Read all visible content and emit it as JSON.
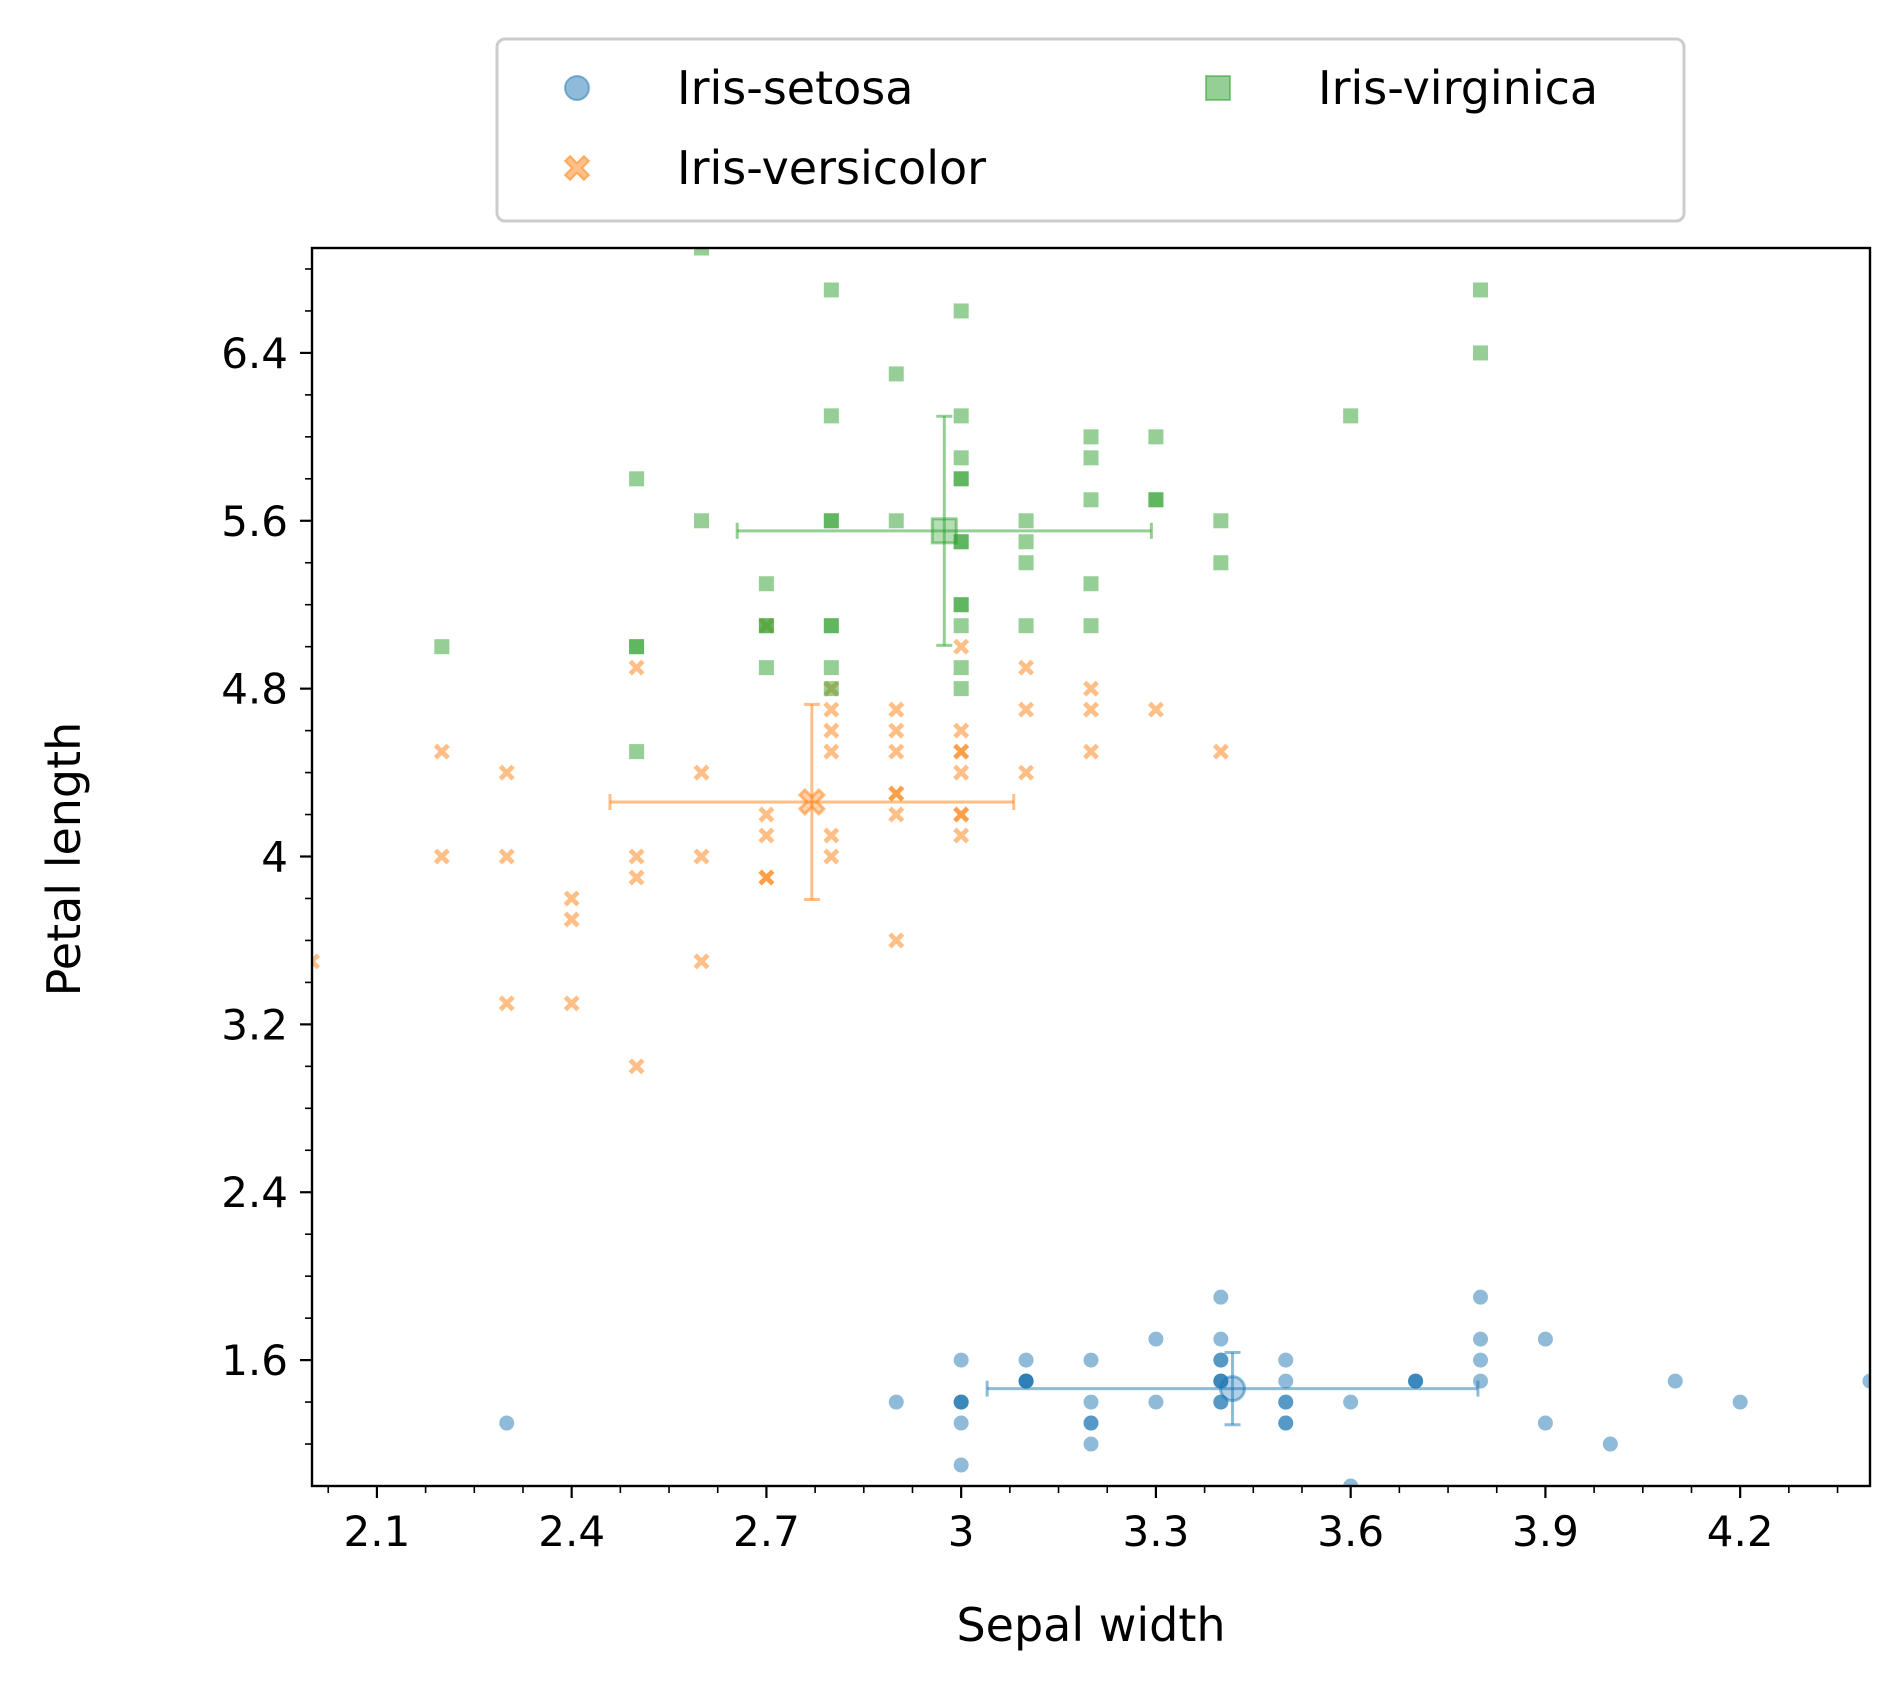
{
  "chart_data": {
    "type": "scatter",
    "x_label": "Sepal width",
    "y_label": "Petal length",
    "xlim": [
      2.0,
      4.4
    ],
    "ylim": [
      1.0,
      6.9
    ],
    "xticks": [
      2.1,
      2.4,
      2.7,
      3.0,
      3.3,
      3.6,
      3.9,
      4.2
    ],
    "yticks": [
      1.6,
      2.4,
      3.2,
      4.0,
      4.8,
      5.6,
      6.4
    ],
    "xminorticks": [
      2.025,
      2.175,
      2.25,
      2.325,
      2.475,
      2.55,
      2.625,
      2.775,
      2.85,
      2.925,
      3.075,
      3.15,
      3.225,
      3.375,
      3.45,
      3.525,
      3.675,
      3.75,
      3.825,
      3.975,
      4.05,
      4.125,
      4.275,
      4.35
    ],
    "yminorticks": [
      1.2,
      1.4,
      1.8,
      2.0,
      2.2,
      2.6,
      2.8,
      3.0,
      3.4,
      3.6,
      3.8,
      4.2,
      4.4,
      4.6,
      5.0,
      5.2,
      5.4,
      5.8,
      6.0,
      6.2,
      6.6,
      6.8
    ],
    "legend": "upper center outside",
    "series": [
      {
        "name": "Iris-setosa",
        "color": "#1f77b4",
        "marker": "o",
        "x": [
          3.5,
          3.0,
          3.2,
          3.1,
          3.6,
          3.9,
          3.4,
          3.4,
          2.9,
          3.1,
          3.7,
          3.4,
          3.0,
          3.0,
          4.0,
          4.4,
          3.9,
          3.5,
          3.8,
          3.8,
          3.4,
          3.7,
          3.6,
          3.3,
          3.4,
          3.0,
          3.4,
          3.5,
          3.4,
          3.2,
          3.1,
          3.4,
          4.1,
          4.2,
          3.1,
          3.2,
          3.5,
          3.1,
          3.0,
          3.4,
          3.5,
          2.3,
          3.2,
          3.5,
          3.8,
          3.0,
          3.8,
          3.2,
          3.7,
          3.3
        ],
        "y": [
          1.4,
          1.4,
          1.3,
          1.5,
          1.4,
          1.7,
          1.4,
          1.5,
          1.4,
          1.5,
          1.5,
          1.6,
          1.4,
          1.1,
          1.2,
          1.5,
          1.3,
          1.4,
          1.7,
          1.5,
          1.7,
          1.5,
          1.0,
          1.7,
          1.9,
          1.6,
          1.6,
          1.5,
          1.4,
          1.6,
          1.6,
          1.5,
          1.5,
          1.4,
          1.5,
          1.2,
          1.3,
          1.5,
          1.3,
          1.5,
          1.3,
          1.3,
          1.3,
          1.6,
          1.9,
          1.4,
          1.6,
          1.4,
          1.5,
          1.4
        ],
        "mean": {
          "x": 3.418,
          "y": 1.464,
          "x_err": 0.378,
          "y_err": 0.172
        }
      },
      {
        "name": "Iris-versicolor",
        "color": "#ff7f0e",
        "marker": "X",
        "x": [
          3.2,
          3.2,
          3.1,
          2.3,
          2.8,
          2.8,
          3.3,
          2.4,
          2.9,
          2.7,
          2.0,
          3.0,
          2.2,
          2.9,
          2.9,
          3.1,
          3.0,
          2.7,
          2.2,
          2.5,
          3.2,
          2.8,
          2.5,
          2.8,
          2.9,
          3.0,
          2.8,
          3.0,
          2.9,
          2.6,
          2.4,
          2.4,
          2.7,
          2.7,
          3.0,
          3.4,
          3.1,
          2.3,
          3.0,
          2.5,
          2.6,
          3.0,
          2.6,
          2.3,
          2.7,
          3.0,
          2.9,
          2.9,
          2.5,
          2.8
        ],
        "y": [
          4.7,
          4.5,
          4.9,
          4.0,
          4.6,
          4.5,
          4.7,
          3.3,
          4.6,
          3.9,
          3.5,
          4.2,
          4.0,
          4.7,
          3.6,
          4.4,
          4.5,
          4.1,
          4.5,
          3.9,
          4.8,
          4.0,
          4.9,
          4.7,
          4.3,
          4.4,
          4.8,
          5.0,
          4.5,
          3.5,
          3.8,
          3.7,
          3.9,
          5.1,
          4.5,
          4.5,
          4.7,
          4.4,
          4.1,
          4.0,
          4.4,
          4.6,
          4.0,
          3.3,
          4.2,
          4.2,
          4.2,
          4.3,
          3.0,
          4.1
        ],
        "mean": {
          "x": 2.77,
          "y": 4.26,
          "x_err": 0.311,
          "y_err": 0.465
        }
      },
      {
        "name": "Iris-virginica",
        "color": "#2ca02c",
        "marker": "s",
        "x": [
          3.3,
          2.7,
          3.0,
          2.9,
          3.0,
          3.0,
          2.5,
          2.9,
          2.5,
          3.6,
          3.2,
          2.7,
          3.0,
          2.5,
          2.8,
          3.2,
          3.0,
          3.8,
          2.6,
          2.2,
          3.2,
          2.8,
          2.8,
          2.7,
          3.3,
          3.2,
          2.8,
          3.0,
          2.8,
          3.0,
          2.8,
          3.8,
          2.8,
          2.8,
          2.6,
          3.0,
          3.4,
          3.1,
          3.0,
          3.1,
          3.1,
          3.1,
          2.7,
          3.2,
          3.3,
          3.0,
          2.5,
          3.0,
          3.4,
          3.0
        ],
        "y": [
          6.0,
          5.1,
          5.9,
          5.6,
          5.8,
          6.6,
          4.5,
          6.3,
          5.8,
          6.1,
          5.1,
          5.3,
          5.5,
          5.0,
          5.1,
          5.3,
          5.5,
          6.7,
          6.9,
          5.0,
          5.7,
          4.9,
          6.7,
          4.9,
          5.7,
          6.0,
          4.8,
          4.9,
          5.6,
          5.8,
          6.1,
          6.4,
          5.6,
          5.1,
          5.6,
          6.1,
          5.6,
          5.5,
          4.8,
          5.4,
          5.6,
          5.1,
          5.1,
          5.9,
          5.7,
          5.2,
          5.0,
          5.2,
          5.4,
          5.1
        ],
        "mean": {
          "x": 2.974,
          "y": 5.552,
          "x_err": 0.319,
          "y_err": 0.546
        }
      }
    ]
  }
}
